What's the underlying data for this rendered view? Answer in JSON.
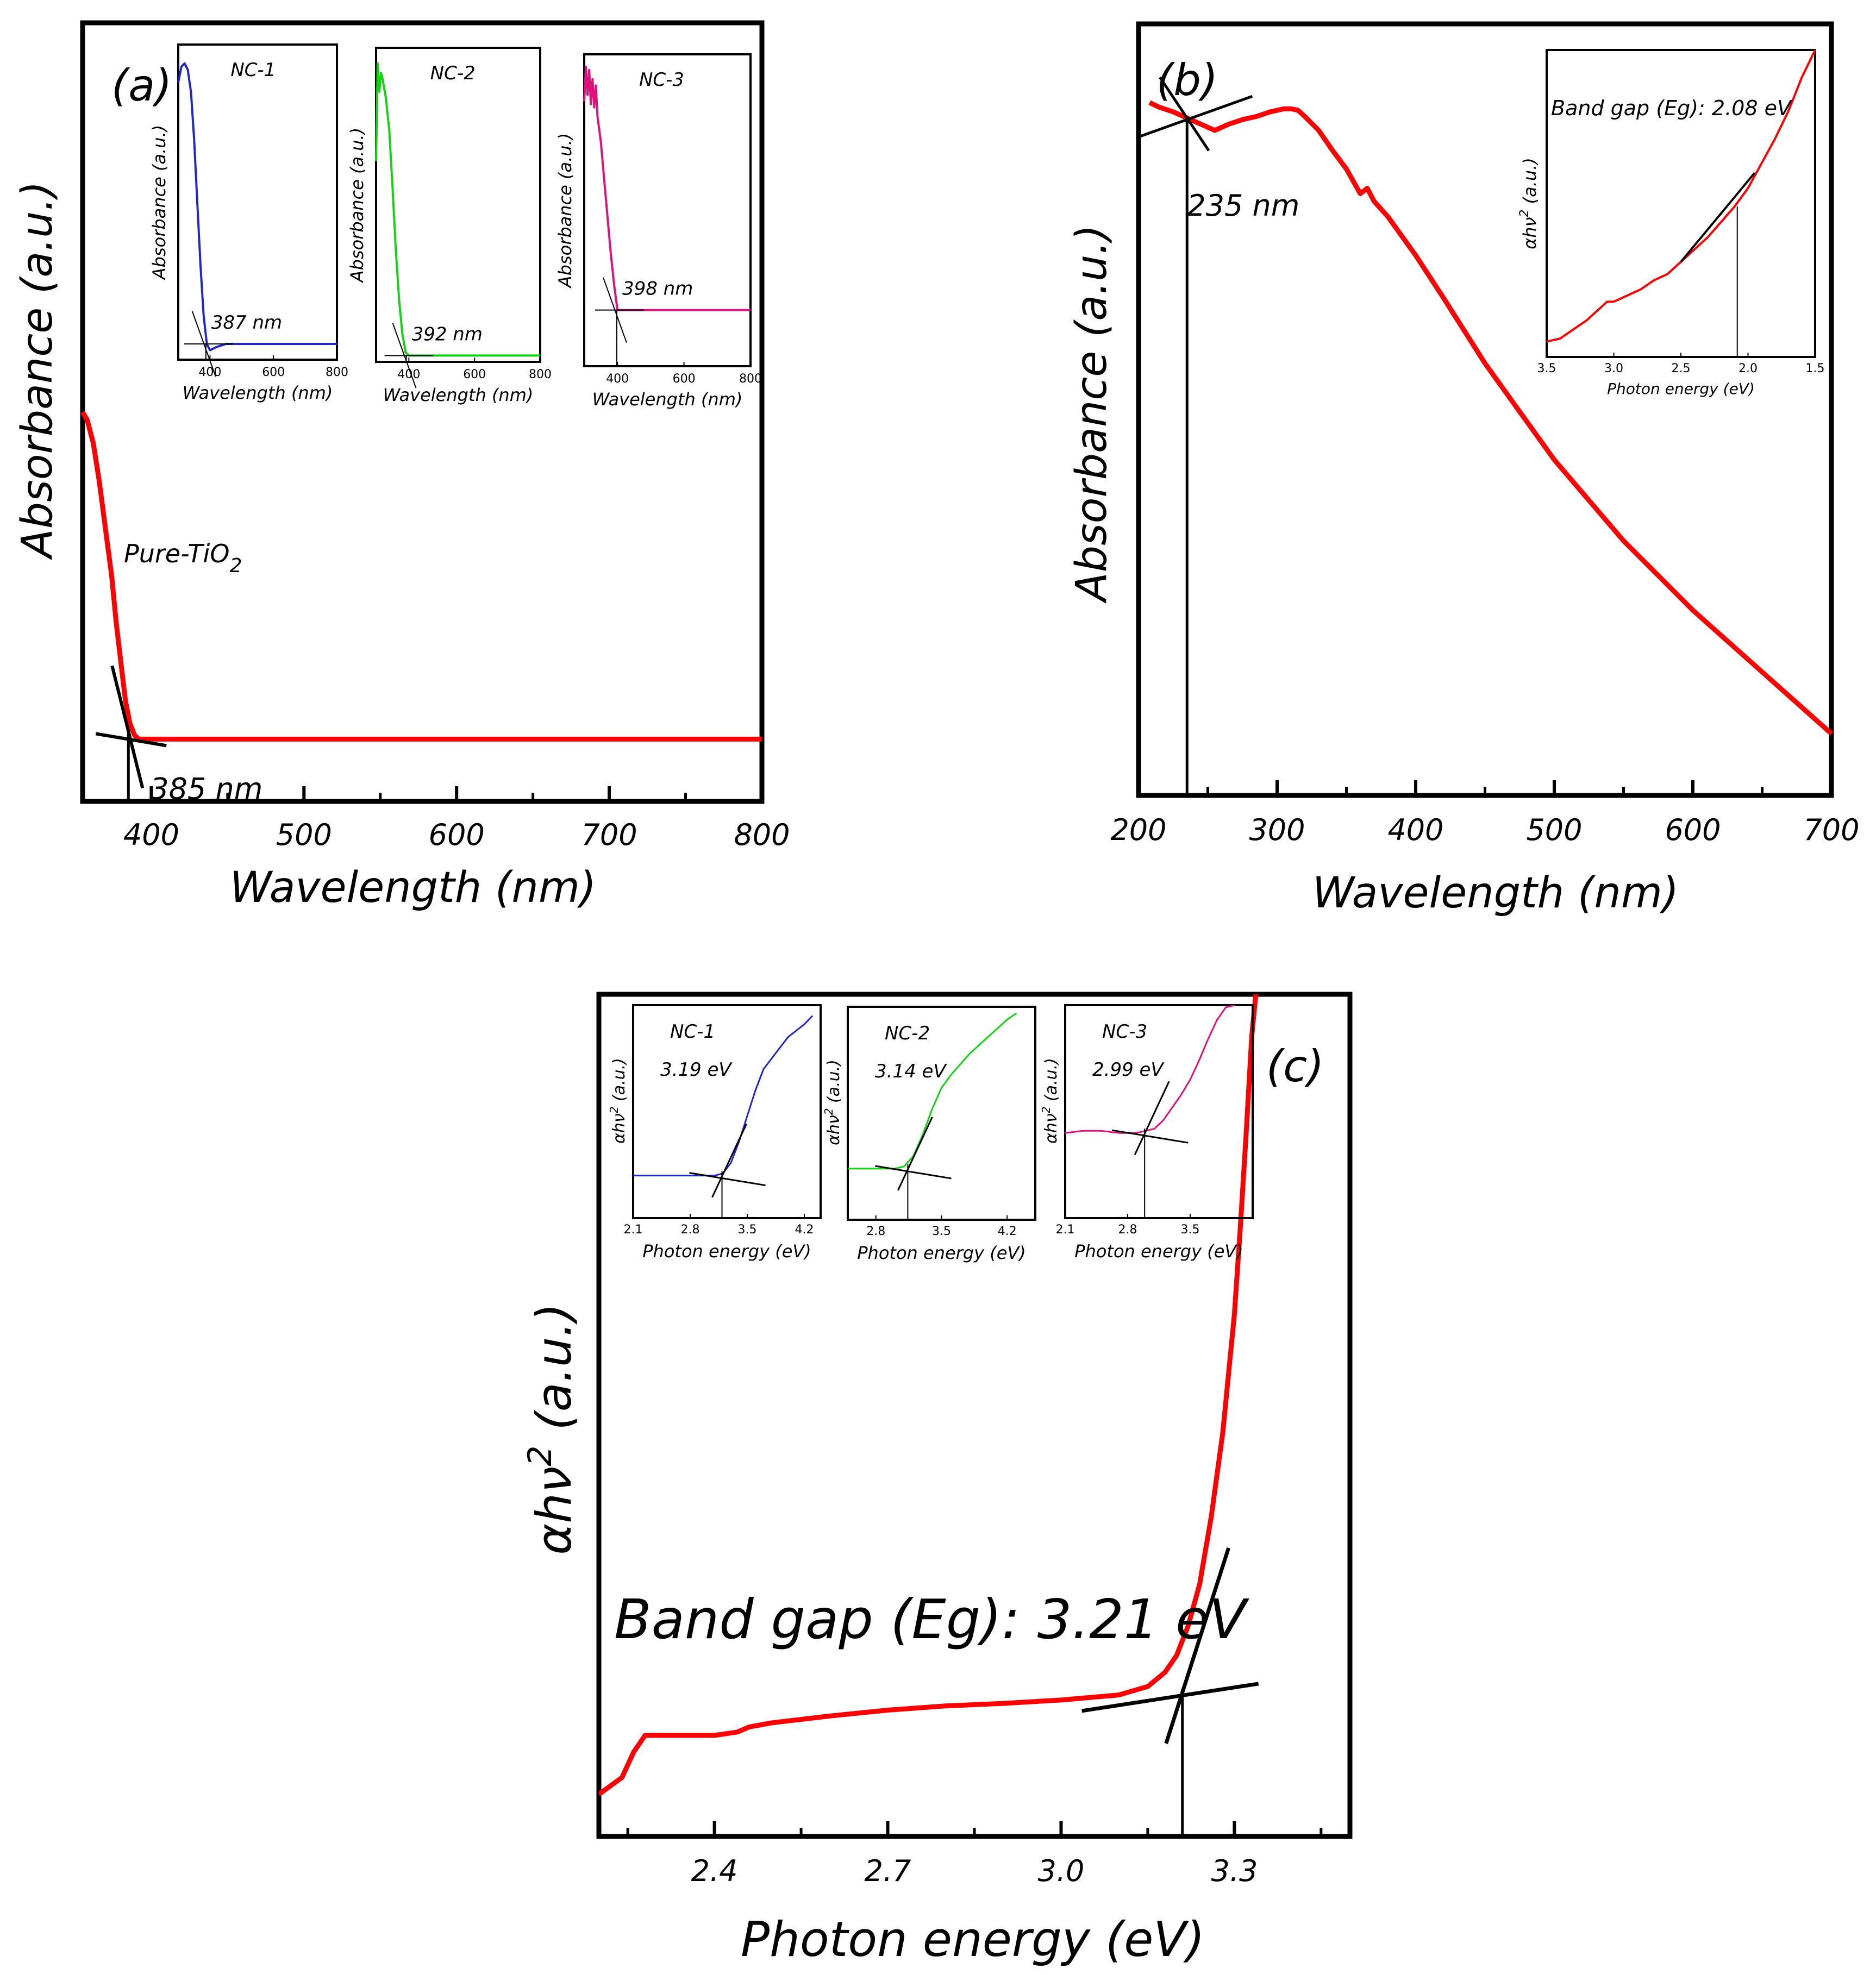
{
  "chart_data": [
    {
      "id": "a",
      "type": "line",
      "panel_label": "(a)",
      "xlabel": "Wavelength (nm)",
      "ylabel": "Absorbance (a.u.)",
      "xlim": [
        355,
        800
      ],
      "ylim": [
        0,
        1
      ],
      "xticks": [
        400,
        500,
        600,
        700,
        800
      ],
      "x_tick_labels": [
        "400",
        "500",
        "600",
        "700",
        "800"
      ],
      "series": [
        {
          "name": "Pure-TiO2",
          "color": "#ff0000",
          "x": [
            355,
            358,
            362,
            366,
            370,
            374,
            377,
            380,
            383,
            386,
            389,
            392,
            396,
            400,
            420,
            500,
            600,
            700,
            800
          ],
          "y": [
            0.5,
            0.49,
            0.46,
            0.41,
            0.35,
            0.29,
            0.23,
            0.18,
            0.13,
            0.1,
            0.085,
            0.08,
            0.08,
            0.08,
            0.08,
            0.08,
            0.08,
            0.08,
            0.08
          ]
        }
      ],
      "sample_label": "Pure-TiO",
      "sample_label_subscript": "2",
      "edge_value": 385,
      "edge_label": "385 nm",
      "insets": [
        {
          "title": "NC-1",
          "color": "#1f24d4",
          "xlabel": "Wavelength (nm)",
          "ylabel": "Absorbance (a.u.)",
          "xlim": [
            300,
            800
          ],
          "ylim": [
            0,
            1
          ],
          "xticks": [
            400,
            600,
            800
          ],
          "x_tick_labels": [
            "400",
            "600",
            "800"
          ],
          "x": [
            300,
            310,
            320,
            330,
            340,
            350,
            360,
            370,
            380,
            390,
            400,
            420,
            450,
            500,
            600,
            700,
            800
          ],
          "y": [
            0.88,
            0.93,
            0.94,
            0.92,
            0.85,
            0.7,
            0.5,
            0.3,
            0.14,
            0.05,
            0.03,
            0.04,
            0.05,
            0.05,
            0.05,
            0.05,
            0.05
          ],
          "edge_value": 387,
          "edge_label": "387 nm"
        },
        {
          "title": "NC-2",
          "color": "#12d412",
          "xlabel": "Wavelength (nm)",
          "ylabel": "Absorbance (a.u.)",
          "xlim": [
            300,
            800
          ],
          "ylim": [
            0,
            1
          ],
          "xticks": [
            400,
            600,
            800
          ],
          "x_tick_labels": [
            "400",
            "600",
            "800"
          ],
          "x": [
            300,
            305,
            310,
            315,
            320,
            330,
            340,
            350,
            360,
            370,
            380,
            390,
            400,
            450,
            500,
            600,
            700,
            800
          ],
          "y": [
            0.64,
            0.95,
            0.86,
            0.92,
            0.9,
            0.84,
            0.74,
            0.56,
            0.36,
            0.2,
            0.09,
            0.03,
            0.02,
            0.02,
            0.02,
            0.02,
            0.02,
            0.02
          ],
          "edge_value": 392,
          "edge_label": "392 nm"
        },
        {
          "title": "NC-3",
          "color": "#e0117a",
          "xlabel": "Wavelength (nm)",
          "ylabel": "Absorbance (a.u.)",
          "xlim": [
            300,
            800
          ],
          "ylim": [
            0,
            1
          ],
          "xticks": [
            400,
            600,
            800
          ],
          "x_tick_labels": [
            "400",
            "600",
            "800"
          ],
          "x": [
            300,
            305,
            310,
            315,
            320,
            325,
            330,
            335,
            340,
            350,
            360,
            370,
            380,
            390,
            400,
            450,
            500,
            600,
            700,
            800
          ],
          "y": [
            0.85,
            0.96,
            0.87,
            0.95,
            0.84,
            0.92,
            0.83,
            0.9,
            0.8,
            0.72,
            0.6,
            0.48,
            0.36,
            0.26,
            0.18,
            0.18,
            0.18,
            0.18,
            0.18,
            0.18
          ],
          "edge_value": 398,
          "edge_label": "398 nm"
        }
      ]
    },
    {
      "id": "b",
      "type": "line",
      "panel_label": "(b)",
      "xlabel": "Wavelength (nm)",
      "ylabel": "Absorbance (a.u.)",
      "xlim": [
        200,
        700
      ],
      "ylim": [
        0,
        1
      ],
      "xticks": [
        200,
        300,
        400,
        500,
        600,
        700
      ],
      "x_tick_labels": [
        "200",
        "300",
        "400",
        "500",
        "600",
        "700"
      ],
      "series": [
        {
          "name": "sample",
          "color": "#ff0000",
          "x": [
            208,
            215,
            225,
            235,
            245,
            255,
            265,
            275,
            285,
            295,
            305,
            310,
            315,
            320,
            330,
            340,
            350,
            360,
            365,
            370,
            380,
            400,
            420,
            450,
            500,
            550,
            600,
            650,
            700
          ],
          "y": [
            0.898,
            0.892,
            0.886,
            0.878,
            0.87,
            0.862,
            0.87,
            0.876,
            0.88,
            0.886,
            0.89,
            0.89,
            0.888,
            0.88,
            0.862,
            0.836,
            0.812,
            0.78,
            0.787,
            0.77,
            0.75,
            0.7,
            0.645,
            0.56,
            0.435,
            0.33,
            0.24,
            0.16,
            0.08
          ]
        }
      ],
      "edge_value": 235,
      "edge_label": "235 nm",
      "inset": {
        "color": "#ff0000",
        "xlabel": "Photon energy (eV)",
        "ylabel": "αhν² (a.u.)",
        "ylabel_main": "αhν",
        "ylabel_sup": "2",
        "ylabel_unit": "(a.u.)",
        "xlim": [
          3.5,
          1.5
        ],
        "ylim": [
          0,
          1
        ],
        "xticks": [
          3.5,
          3.0,
          2.5,
          2.0,
          1.5
        ],
        "x_tick_labels": [
          "3.5",
          "3.0",
          "2.5",
          "2.0",
          "1.5"
        ],
        "annotation": "Band gap (Eg): 2.08 eV",
        "edge_value": 2.08,
        "x": [
          3.5,
          3.4,
          3.3,
          3.2,
          3.1,
          3.05,
          3.0,
          2.9,
          2.8,
          2.7,
          2.6,
          2.5,
          2.4,
          2.3,
          2.2,
          2.1,
          2.0,
          1.9,
          1.8,
          1.7,
          1.6,
          1.5
        ],
        "y": [
          0.05,
          0.06,
          0.09,
          0.12,
          0.16,
          0.18,
          0.18,
          0.2,
          0.22,
          0.25,
          0.27,
          0.31,
          0.35,
          0.39,
          0.44,
          0.49,
          0.55,
          0.63,
          0.71,
          0.8,
          0.91,
          1.0
        ]
      }
    },
    {
      "id": "c",
      "type": "line",
      "panel_label": "(c)",
      "xlabel": "Photon energy (eV)",
      "ylabel": "αhν² (a.u.)",
      "ylabel_main": "αhν",
      "ylabel_sup": "2",
      "ylabel_unit": "(a.u.)",
      "xlim": [
        2.2,
        3.5
      ],
      "ylim": [
        0,
        1
      ],
      "xticks": [
        2.4,
        2.7,
        3.0,
        3.3
      ],
      "x_tick_labels": [
        "2.4",
        "2.7",
        "3.0",
        "3.3"
      ],
      "series": [
        {
          "name": "sample",
          "color": "#ff0000",
          "x": [
            2.2,
            2.24,
            2.26,
            2.28,
            2.3,
            2.35,
            2.4,
            2.44,
            2.46,
            2.5,
            2.6,
            2.7,
            2.8,
            2.9,
            3.0,
            3.1,
            3.15,
            3.18,
            3.2,
            3.22,
            3.24,
            3.26,
            3.28,
            3.3,
            3.31,
            3.32,
            3.33,
            3.34
          ],
          "y": [
            0.05,
            0.07,
            0.1,
            0.12,
            0.12,
            0.12,
            0.12,
            0.124,
            0.13,
            0.135,
            0.143,
            0.15,
            0.155,
            0.158,
            0.162,
            0.168,
            0.178,
            0.195,
            0.215,
            0.25,
            0.3,
            0.38,
            0.48,
            0.62,
            0.72,
            0.83,
            0.95,
            1.02
          ]
        }
      ],
      "annotation": "Band gap (Eg): 3.21 eV",
      "edge_value": 3.21,
      "insets": [
        {
          "title": "NC-1",
          "annotation": "3.19 eV",
          "color": "#1f24d4",
          "xlabel": "Photon energy (eV)",
          "xlim": [
            2.1,
            4.4
          ],
          "ylim": [
            0,
            1
          ],
          "xticks": [
            2.1,
            2.8,
            3.5,
            4.2
          ],
          "x_tick_labels": [
            "2.1",
            "2.8",
            "3.5",
            "4.2"
          ],
          "x": [
            2.1,
            2.5,
            2.9,
            3.1,
            3.2,
            3.3,
            3.4,
            3.5,
            3.6,
            3.7,
            3.8,
            3.9,
            4.0,
            4.1,
            4.2,
            4.3
          ],
          "y": [
            0.2,
            0.2,
            0.2,
            0.2,
            0.21,
            0.26,
            0.36,
            0.48,
            0.6,
            0.7,
            0.75,
            0.8,
            0.85,
            0.88,
            0.91,
            0.95
          ],
          "edge_value": 3.19
        },
        {
          "title": "NC-2",
          "annotation": "3.14 eV",
          "color": "#12d412",
          "xlabel": "Photon energy (eV)",
          "xlim": [
            2.5,
            4.5
          ],
          "ylim": [
            0,
            1
          ],
          "xticks": [
            2.8,
            3.5,
            4.2
          ],
          "x_tick_labels": [
            "2.8",
            "3.5",
            "4.2"
          ],
          "x": [
            2.5,
            2.8,
            3.0,
            3.1,
            3.2,
            3.3,
            3.4,
            3.5,
            3.6,
            3.8,
            4.0,
            4.2,
            4.3
          ],
          "y": [
            0.24,
            0.24,
            0.24,
            0.25,
            0.3,
            0.4,
            0.52,
            0.62,
            0.68,
            0.78,
            0.86,
            0.94,
            0.97
          ],
          "edge_value": 3.14
        },
        {
          "title": "NC-3",
          "annotation": "2.99 eV",
          "color": "#e0117a",
          "xlabel": "Photon energy (eV)",
          "xlim": [
            2.1,
            4.2
          ],
          "ylim": [
            0,
            1
          ],
          "xticks": [
            2.1,
            2.8,
            3.5
          ],
          "x_tick_labels": [
            "2.1",
            "2.8",
            "3.5"
          ],
          "x": [
            2.1,
            2.3,
            2.5,
            2.7,
            2.9,
            3.0,
            3.1,
            3.2,
            3.3,
            3.4,
            3.5,
            3.6,
            3.7,
            3.8,
            3.9,
            4.0
          ],
          "y": [
            0.4,
            0.41,
            0.41,
            0.4,
            0.4,
            0.41,
            0.42,
            0.46,
            0.52,
            0.58,
            0.65,
            0.74,
            0.84,
            0.93,
            0.99,
            1.0
          ],
          "edge_value": 2.99
        }
      ]
    }
  ]
}
